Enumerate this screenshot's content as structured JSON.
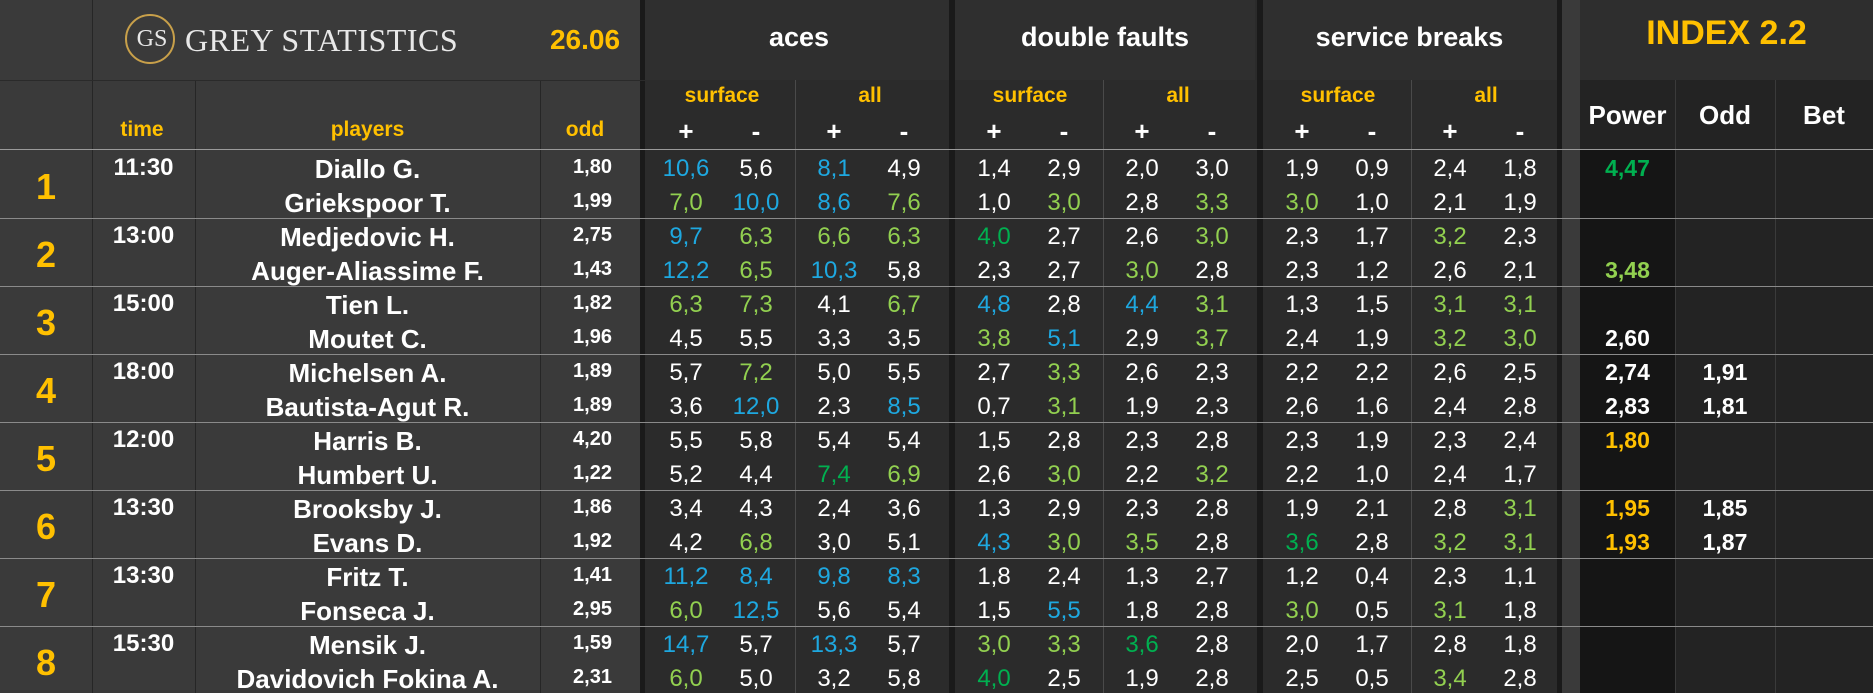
{
  "header": {
    "logo_monogram": "GS",
    "brand": "GREY STATISTICS",
    "date": "26.06",
    "col_time": "time",
    "col_players": "players",
    "col_odd": "odd",
    "groups": [
      "aces",
      "double faults",
      "service breaks"
    ],
    "subgroups": [
      "surface",
      "all"
    ],
    "plus": "+",
    "minus": "-",
    "index_title": "INDEX 2.2",
    "index_cols": [
      "Power",
      "Odd",
      "Bet"
    ]
  },
  "colors": {
    "background": "#3a3a3a",
    "stats_background": "#2b2b2b",
    "index_background": "#1e1e1e",
    "accent_yellow": "#ffc000",
    "blue": "#1ea8e0",
    "green": "#00b050",
    "light_green": "#92d050",
    "white": "#ffffff"
  },
  "matches": [
    {
      "number": "1",
      "time": "11:30",
      "players": [
        {
          "name": "Diallo G.",
          "odd": "1,80",
          "stats": [
            [
              "10,6",
              "b"
            ],
            [
              "5,6",
              "w"
            ],
            [
              "8,1",
              "b"
            ],
            [
              "4,9",
              "w"
            ],
            [
              "1,4",
              "w"
            ],
            [
              "2,9",
              "w"
            ],
            [
              "2,0",
              "w"
            ],
            [
              "3,0",
              "w"
            ],
            [
              "1,9",
              "w"
            ],
            [
              "0,9",
              "w"
            ],
            [
              "2,4",
              "w"
            ],
            [
              "1,8",
              "w"
            ]
          ],
          "power": "4,47",
          "power_color": "g",
          "index_odd": ""
        },
        {
          "name": "Griekspoor T.",
          "odd": "1,99",
          "stats": [
            [
              "7,0",
              "l"
            ],
            [
              "10,0",
              "b"
            ],
            [
              "8,6",
              "b"
            ],
            [
              "7,6",
              "l"
            ],
            [
              "1,0",
              "w"
            ],
            [
              "3,0",
              "l"
            ],
            [
              "2,8",
              "w"
            ],
            [
              "3,3",
              "l"
            ],
            [
              "3,0",
              "l"
            ],
            [
              "1,0",
              "w"
            ],
            [
              "2,1",
              "w"
            ],
            [
              "1,9",
              "w"
            ]
          ],
          "power": "",
          "power_color": "w",
          "index_odd": ""
        }
      ]
    },
    {
      "number": "2",
      "time": "13:00",
      "players": [
        {
          "name": "Medjedovic H.",
          "odd": "2,75",
          "stats": [
            [
              "9,7",
              "b"
            ],
            [
              "6,3",
              "l"
            ],
            [
              "6,6",
              "l"
            ],
            [
              "6,3",
              "l"
            ],
            [
              "4,0",
              "g"
            ],
            [
              "2,7",
              "w"
            ],
            [
              "2,6",
              "w"
            ],
            [
              "3,0",
              "l"
            ],
            [
              "2,3",
              "w"
            ],
            [
              "1,7",
              "w"
            ],
            [
              "3,2",
              "l"
            ],
            [
              "2,3",
              "w"
            ]
          ],
          "power": "",
          "power_color": "w",
          "index_odd": ""
        },
        {
          "name": "Auger-Aliassime F.",
          "odd": "1,43",
          "stats": [
            [
              "12,2",
              "b"
            ],
            [
              "6,5",
              "l"
            ],
            [
              "10,3",
              "b"
            ],
            [
              "5,8",
              "w"
            ],
            [
              "2,3",
              "w"
            ],
            [
              "2,7",
              "w"
            ],
            [
              "3,0",
              "l"
            ],
            [
              "2,8",
              "w"
            ],
            [
              "2,3",
              "w"
            ],
            [
              "1,2",
              "w"
            ],
            [
              "2,6",
              "w"
            ],
            [
              "2,1",
              "w"
            ]
          ],
          "power": "3,48",
          "power_color": "l",
          "index_odd": ""
        }
      ]
    },
    {
      "number": "3",
      "time": "15:00",
      "players": [
        {
          "name": "Tien L.",
          "odd": "1,82",
          "stats": [
            [
              "6,3",
              "l"
            ],
            [
              "7,3",
              "l"
            ],
            [
              "4,1",
              "w"
            ],
            [
              "6,7",
              "l"
            ],
            [
              "4,8",
              "b"
            ],
            [
              "2,8",
              "w"
            ],
            [
              "4,4",
              "b"
            ],
            [
              "3,1",
              "l"
            ],
            [
              "1,3",
              "w"
            ],
            [
              "1,5",
              "w"
            ],
            [
              "3,1",
              "l"
            ],
            [
              "3,1",
              "l"
            ]
          ],
          "power": "",
          "power_color": "w",
          "index_odd": ""
        },
        {
          "name": "Moutet C.",
          "odd": "1,96",
          "stats": [
            [
              "4,5",
              "w"
            ],
            [
              "5,5",
              "w"
            ],
            [
              "3,3",
              "w"
            ],
            [
              "3,5",
              "w"
            ],
            [
              "3,8",
              "l"
            ],
            [
              "5,1",
              "b"
            ],
            [
              "2,9",
              "w"
            ],
            [
              "3,7",
              "l"
            ],
            [
              "2,4",
              "w"
            ],
            [
              "1,9",
              "w"
            ],
            [
              "3,2",
              "l"
            ],
            [
              "3,0",
              "l"
            ]
          ],
          "power": "2,60",
          "power_color": "w",
          "index_odd": ""
        }
      ]
    },
    {
      "number": "4",
      "time": "18:00",
      "players": [
        {
          "name": "Michelsen A.",
          "odd": "1,89",
          "stats": [
            [
              "5,7",
              "w"
            ],
            [
              "7,2",
              "l"
            ],
            [
              "5,0",
              "w"
            ],
            [
              "5,5",
              "w"
            ],
            [
              "2,7",
              "w"
            ],
            [
              "3,3",
              "l"
            ],
            [
              "2,6",
              "w"
            ],
            [
              "2,3",
              "w"
            ],
            [
              "2,2",
              "w"
            ],
            [
              "2,2",
              "w"
            ],
            [
              "2,6",
              "w"
            ],
            [
              "2,5",
              "w"
            ]
          ],
          "power": "2,74",
          "power_color": "w",
          "index_odd": "1,91"
        },
        {
          "name": "Bautista-Agut R.",
          "odd": "1,89",
          "stats": [
            [
              "3,6",
              "w"
            ],
            [
              "12,0",
              "b"
            ],
            [
              "2,3",
              "w"
            ],
            [
              "8,5",
              "b"
            ],
            [
              "0,7",
              "w"
            ],
            [
              "3,1",
              "l"
            ],
            [
              "1,9",
              "w"
            ],
            [
              "2,3",
              "w"
            ],
            [
              "2,6",
              "w"
            ],
            [
              "1,6",
              "w"
            ],
            [
              "2,4",
              "w"
            ],
            [
              "2,8",
              "w"
            ]
          ],
          "power": "2,83",
          "power_color": "w",
          "index_odd": "1,81"
        }
      ]
    },
    {
      "number": "5",
      "time": "12:00",
      "players": [
        {
          "name": "Harris B.",
          "odd": "4,20",
          "stats": [
            [
              "5,5",
              "w"
            ],
            [
              "5,8",
              "w"
            ],
            [
              "5,4",
              "w"
            ],
            [
              "5,4",
              "w"
            ],
            [
              "1,5",
              "w"
            ],
            [
              "2,8",
              "w"
            ],
            [
              "2,3",
              "w"
            ],
            [
              "2,8",
              "w"
            ],
            [
              "2,3",
              "w"
            ],
            [
              "1,9",
              "w"
            ],
            [
              "2,3",
              "w"
            ],
            [
              "2,4",
              "w"
            ]
          ],
          "power": "1,80",
          "power_color": "y",
          "index_odd": ""
        },
        {
          "name": "Humbert U.",
          "odd": "1,22",
          "stats": [
            [
              "5,2",
              "w"
            ],
            [
              "4,4",
              "w"
            ],
            [
              "7,4",
              "g"
            ],
            [
              "6,9",
              "l"
            ],
            [
              "2,6",
              "w"
            ],
            [
              "3,0",
              "l"
            ],
            [
              "2,2",
              "w"
            ],
            [
              "3,2",
              "l"
            ],
            [
              "2,2",
              "w"
            ],
            [
              "1,0",
              "w"
            ],
            [
              "2,4",
              "w"
            ],
            [
              "1,7",
              "w"
            ]
          ],
          "power": "",
          "power_color": "w",
          "index_odd": ""
        }
      ]
    },
    {
      "number": "6",
      "time": "13:30",
      "players": [
        {
          "name": "Brooksby J.",
          "odd": "1,86",
          "stats": [
            [
              "3,4",
              "w"
            ],
            [
              "4,3",
              "w"
            ],
            [
              "2,4",
              "w"
            ],
            [
              "3,6",
              "w"
            ],
            [
              "1,3",
              "w"
            ],
            [
              "2,9",
              "w"
            ],
            [
              "2,3",
              "w"
            ],
            [
              "2,8",
              "w"
            ],
            [
              "1,9",
              "w"
            ],
            [
              "2,1",
              "w"
            ],
            [
              "2,8",
              "w"
            ],
            [
              "3,1",
              "l"
            ]
          ],
          "power": "1,95",
          "power_color": "y",
          "index_odd": "1,85"
        },
        {
          "name": "Evans D.",
          "odd": "1,92",
          "stats": [
            [
              "4,2",
              "w"
            ],
            [
              "6,8",
              "l"
            ],
            [
              "3,0",
              "w"
            ],
            [
              "5,1",
              "w"
            ],
            [
              "4,3",
              "b"
            ],
            [
              "3,0",
              "l"
            ],
            [
              "3,5",
              "l"
            ],
            [
              "2,8",
              "w"
            ],
            [
              "3,6",
              "g"
            ],
            [
              "2,8",
              "w"
            ],
            [
              "3,2",
              "l"
            ],
            [
              "3,1",
              "l"
            ]
          ],
          "power": "1,93",
          "power_color": "y",
          "index_odd": "1,87"
        }
      ]
    },
    {
      "number": "7",
      "time": "13:30",
      "players": [
        {
          "name": "Fritz T.",
          "odd": "1,41",
          "stats": [
            [
              "11,2",
              "b"
            ],
            [
              "8,4",
              "b"
            ],
            [
              "9,8",
              "b"
            ],
            [
              "8,3",
              "b"
            ],
            [
              "1,8",
              "w"
            ],
            [
              "2,4",
              "w"
            ],
            [
              "1,3",
              "w"
            ],
            [
              "2,7",
              "w"
            ],
            [
              "1,2",
              "w"
            ],
            [
              "0,4",
              "w"
            ],
            [
              "2,3",
              "w"
            ],
            [
              "1,1",
              "w"
            ]
          ],
          "power": "",
          "power_color": "w",
          "index_odd": ""
        },
        {
          "name": "Fonseca J.",
          "odd": "2,95",
          "stats": [
            [
              "6,0",
              "l"
            ],
            [
              "12,5",
              "b"
            ],
            [
              "5,6",
              "w"
            ],
            [
              "5,4",
              "w"
            ],
            [
              "1,5",
              "w"
            ],
            [
              "5,5",
              "b"
            ],
            [
              "1,8",
              "w"
            ],
            [
              "2,8",
              "w"
            ],
            [
              "3,0",
              "l"
            ],
            [
              "0,5",
              "w"
            ],
            [
              "3,1",
              "l"
            ],
            [
              "1,8",
              "w"
            ]
          ],
          "power": "",
          "power_color": "w",
          "index_odd": ""
        }
      ]
    },
    {
      "number": "8",
      "time": "15:30",
      "players": [
        {
          "name": "Mensik J.",
          "odd": "1,59",
          "stats": [
            [
              "14,7",
              "b"
            ],
            [
              "5,7",
              "w"
            ],
            [
              "13,3",
              "b"
            ],
            [
              "5,7",
              "w"
            ],
            [
              "3,0",
              "l"
            ],
            [
              "3,3",
              "l"
            ],
            [
              "3,6",
              "g"
            ],
            [
              "2,8",
              "w"
            ],
            [
              "2,0",
              "w"
            ],
            [
              "1,7",
              "w"
            ],
            [
              "2,8",
              "w"
            ],
            [
              "1,8",
              "w"
            ]
          ],
          "power": "",
          "power_color": "w",
          "index_odd": ""
        },
        {
          "name": "Davidovich Fokina A.",
          "odd": "2,31",
          "stats": [
            [
              "6,0",
              "l"
            ],
            [
              "5,0",
              "w"
            ],
            [
              "3,2",
              "w"
            ],
            [
              "5,8",
              "w"
            ],
            [
              "4,0",
              "g"
            ],
            [
              "2,5",
              "w"
            ],
            [
              "1,9",
              "w"
            ],
            [
              "2,8",
              "w"
            ],
            [
              "2,5",
              "w"
            ],
            [
              "0,5",
              "w"
            ],
            [
              "3,4",
              "l"
            ],
            [
              "2,8",
              "w"
            ]
          ],
          "power": "",
          "power_color": "w",
          "index_odd": ""
        }
      ]
    }
  ]
}
